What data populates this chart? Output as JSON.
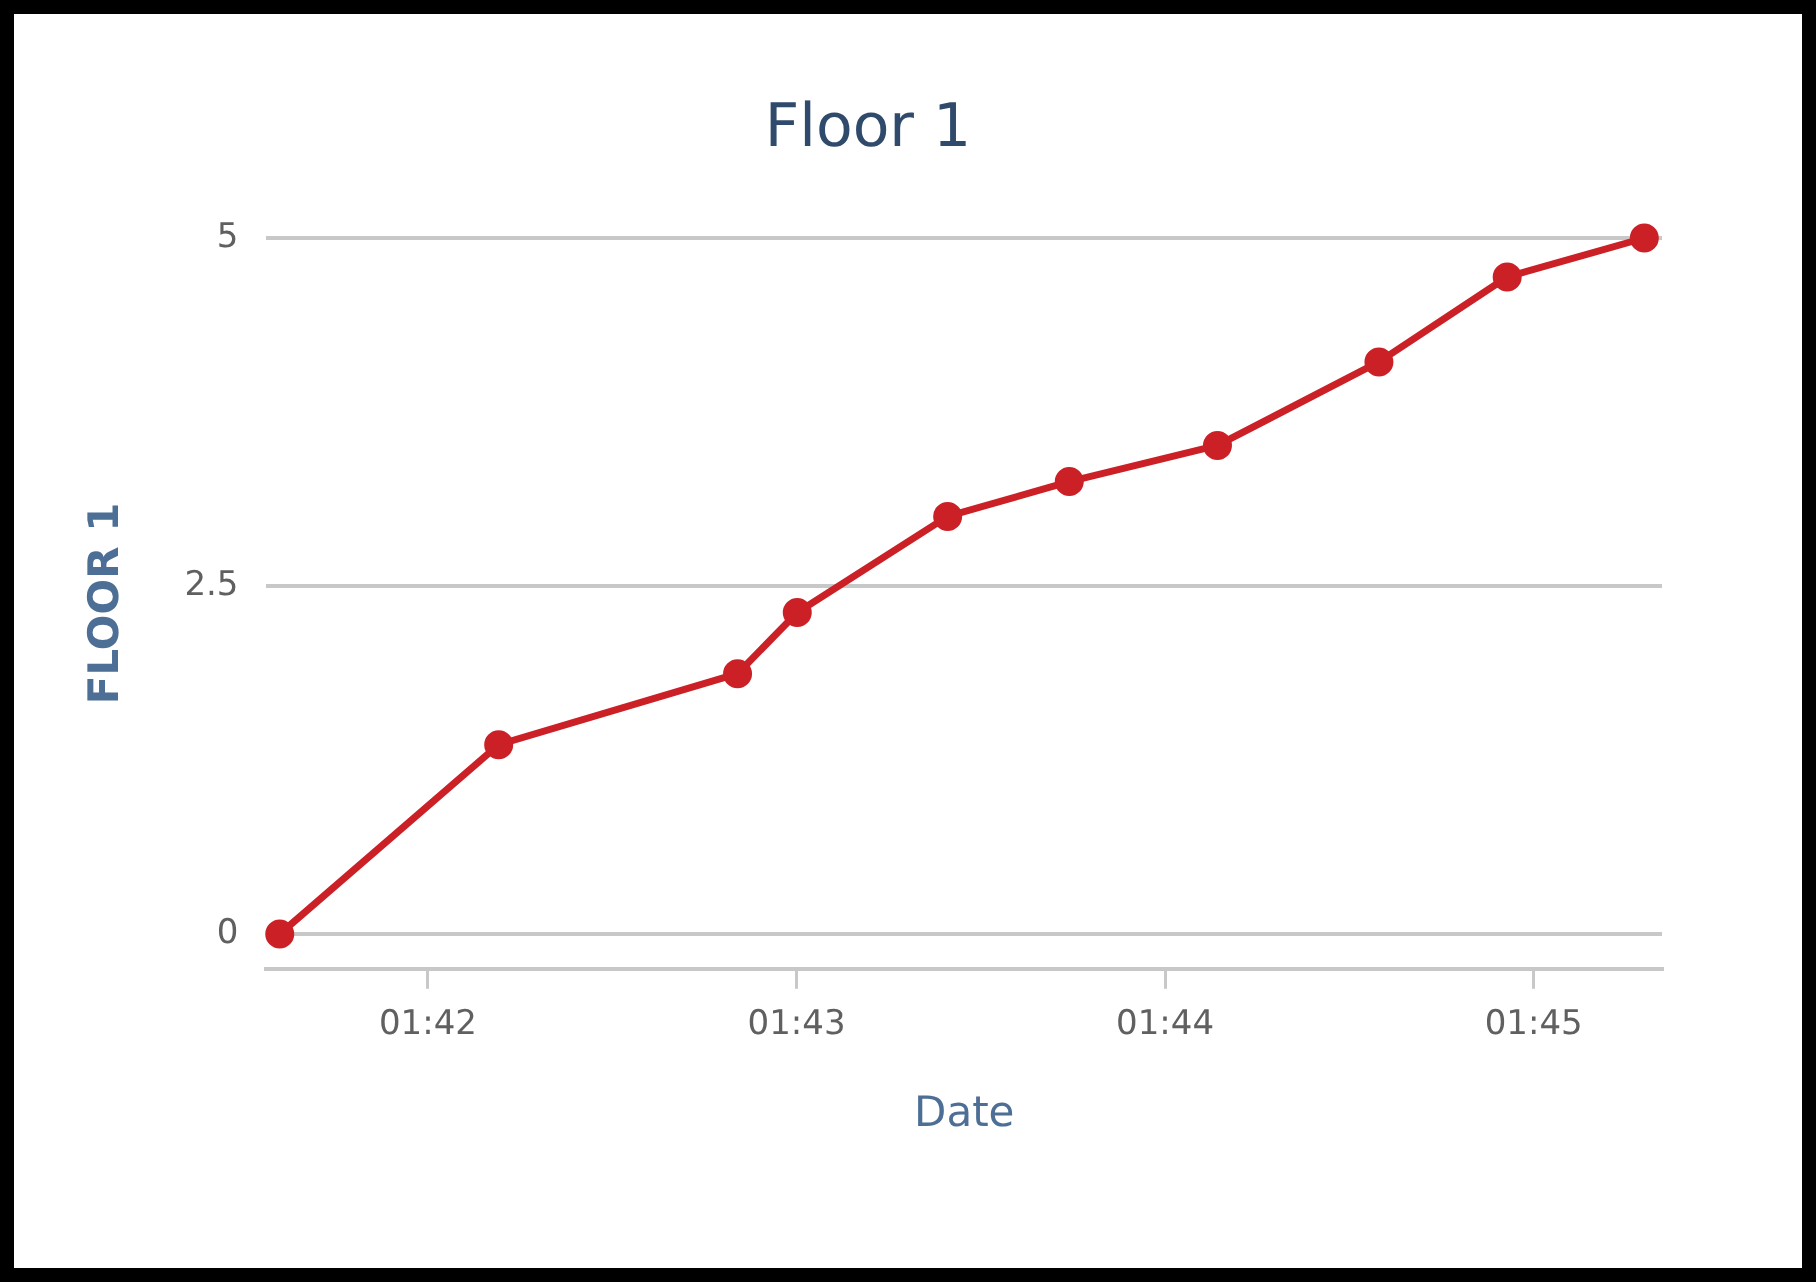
{
  "chart_data": {
    "type": "line",
    "title": "Floor 1",
    "xlabel": "Date",
    "ylabel": "FLOOR 1",
    "x": [
      1.6933,
      1.7032,
      1.714,
      1.7167,
      1.7235,
      1.729,
      1.7357,
      1.743,
      1.7488,
      1.755
    ],
    "series": [
      {
        "color": "#cc2027",
        "values": [
          0,
          1.36,
          1.87,
          2.31,
          3.0,
          3.25,
          3.51,
          4.11,
          4.72,
          5.0
        ]
      }
    ],
    "xlim": [
      1.6927,
      1.7558
    ],
    "xticks": [
      {
        "value": 1.7,
        "label": "01:42"
      },
      {
        "value": 1.71667,
        "label": "01:43"
      },
      {
        "value": 1.73333,
        "label": "01:44"
      },
      {
        "value": 1.75,
        "label": "01:45"
      }
    ],
    "ylim": [
      -0.25,
      5
    ],
    "yticks": [
      0,
      2.5,
      5
    ],
    "grid": "y",
    "legend": false,
    "marker": "circle",
    "line_style": "solid"
  }
}
